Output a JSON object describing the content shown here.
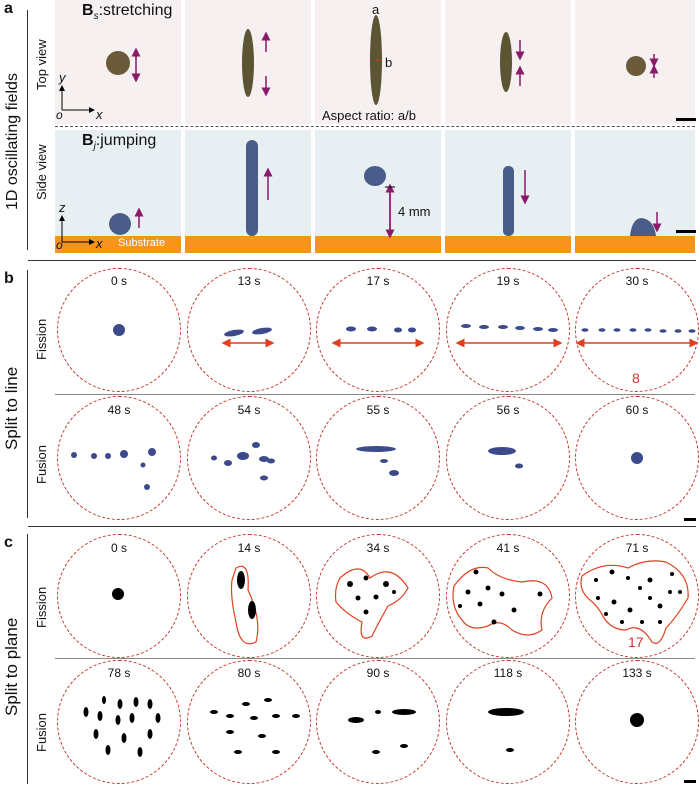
{
  "panel_a": {
    "letter": "a",
    "side_title": "1D oscillating fields",
    "top_row_label": "Top view",
    "bottom_row_label": "Side view",
    "top_field_label_main": "B",
    "top_field_label_sub": "s",
    "top_field_label_rest": ":stretching",
    "bottom_field_label_main": "B",
    "bottom_field_label_sub": "j",
    "bottom_field_label_rest": ":jumping",
    "axis_top_y": "y",
    "axis_top_x": "x",
    "axis_top_o": "o",
    "axis_bottom_z": "z",
    "axis_bottom_x": "x",
    "axis_bottom_o": "o",
    "label_a": "a",
    "label_b": "b",
    "aspect_ratio": "Aspect ratio: a/b",
    "jump_height": "4 mm",
    "substrate": "Substrate"
  },
  "panel_b": {
    "letter": "b",
    "side_title": "Split to line",
    "row1_label": "Fission",
    "row2_label": "Fusion",
    "row1_times": [
      "0 s",
      "13 s",
      "17 s",
      "19 s",
      "30 s"
    ],
    "row2_times": [
      "48 s",
      "54 s",
      "55 s",
      "56 s",
      "60 s"
    ],
    "count_label": "8"
  },
  "panel_c": {
    "letter": "c",
    "side_title": "Split to plane",
    "row1_label": "Fission",
    "row2_label": "Fusion",
    "row1_times": [
      "0 s",
      "14 s",
      "34 s",
      "41 s",
      "71 s"
    ],
    "row2_times": [
      "78 s",
      "80 s",
      "90 s",
      "118 s",
      "133 s"
    ],
    "count_label": "17"
  },
  "colors": {
    "substrate": "#f7941d",
    "arrow_purple": "#8b1a6b",
    "dash_red": "#c0392b",
    "arrow_red": "#e0401f",
    "droplet_blue": "#3c4a8c"
  }
}
